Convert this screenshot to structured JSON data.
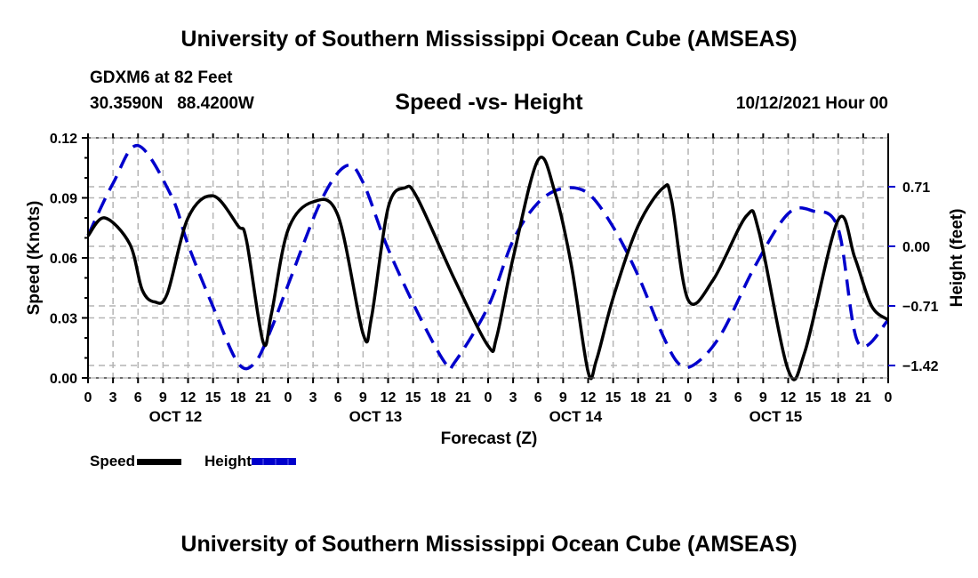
{
  "header": {
    "main_title": "University of Southern Mississippi Ocean Cube (AMSEAS)",
    "station": "GDXM6 at 82 Feet",
    "coords": "30.3590N   88.4200W",
    "chart_title": "Speed -vs- Height",
    "date": "10/12/2021 Hour 00"
  },
  "footer": {
    "bottom_title": "University of Southern Mississippi Ocean Cube (AMSEAS)"
  },
  "colors": {
    "speed": "#000000",
    "height": "#0000cc",
    "grid": "#b4b4b4"
  },
  "chart_data": {
    "type": "line",
    "title": "Speed -vs- Height",
    "xlabel": "Forecast (Z)",
    "ylabel": "Speed (Knots)",
    "y2label": "Height (feet)",
    "x_unit": "hours from 10/12/2021 00Z",
    "xlim": [
      0,
      96
    ],
    "ylim": [
      0.0,
      0.12
    ],
    "y2lim": [
      -1.58,
      2.02
    ],
    "x_tick_labels": [
      "0",
      "3",
      "6",
      "9",
      "12",
      "15",
      "18",
      "21",
      "0",
      "3",
      "6",
      "9",
      "12",
      "15",
      "18",
      "21",
      "0",
      "3",
      "6",
      "9",
      "12",
      "15",
      "18",
      "21",
      "0",
      "3",
      "6",
      "9",
      "12",
      "15",
      "18",
      "21",
      "0"
    ],
    "day_labels": [
      "OCT 12",
      "OCT 13",
      "OCT 14",
      "OCT 15"
    ],
    "y_ticks": [
      "0.00",
      "0.03",
      "0.06",
      "0.09",
      "0.12"
    ],
    "y2_ticks": [
      "-1.42",
      "-0.71",
      "0.00",
      "0.71"
    ],
    "grid": true,
    "legend": {
      "position": "bottom-left",
      "entries": [
        {
          "name": "Speed",
          "style": "solid"
        },
        {
          "name": "Height",
          "style": "dashed"
        }
      ]
    },
    "series": [
      {
        "name": "Speed",
        "axis": "left",
        "x": [
          0,
          2,
          5,
          6.5,
          8,
          9.5,
          12,
          15,
          18,
          19,
          21,
          22,
          24,
          27,
          30,
          33,
          34,
          36,
          38,
          39.5,
          44,
          48,
          49,
          51,
          54,
          56,
          58,
          60,
          61,
          63,
          66,
          69,
          70,
          72,
          75,
          79,
          80.5,
          84,
          86,
          90,
          92,
          94,
          96
        ],
        "values": [
          0.071,
          0.08,
          0.067,
          0.044,
          0.038,
          0.042,
          0.08,
          0.091,
          0.076,
          0.069,
          0.018,
          0.032,
          0.074,
          0.088,
          0.081,
          0.022,
          0.03,
          0.085,
          0.095,
          0.09,
          0.049,
          0.016,
          0.02,
          0.06,
          0.109,
          0.093,
          0.056,
          0.003,
          0.009,
          0.04,
          0.076,
          0.095,
          0.089,
          0.039,
          0.049,
          0.081,
          0.073,
          0.004,
          0.013,
          0.079,
          0.06,
          0.036,
          0.029
        ]
      },
      {
        "name": "Height",
        "axis": "right",
        "x": [
          0,
          3,
          6,
          10,
          12,
          15,
          18,
          20,
          22,
          24,
          28,
          31,
          33,
          36,
          40,
          43,
          44,
          48,
          51,
          54,
          57,
          60,
          63,
          66,
          69,
          71,
          73,
          76,
          80,
          84,
          87,
          90,
          92.4,
          96
        ],
        "values": [
          0.13,
          0.75,
          1.2,
          0.6,
          0.02,
          -0.72,
          -1.39,
          -1.39,
          -0.98,
          -0.46,
          0.55,
          0.96,
          0.76,
          -0.03,
          -0.88,
          -1.41,
          -1.38,
          -0.72,
          0.07,
          0.52,
          0.69,
          0.63,
          0.23,
          -0.35,
          -1.07,
          -1.41,
          -1.39,
          -1.04,
          -0.24,
          0.39,
          0.42,
          0.21,
          -1.15,
          -0.88
        ]
      }
    ]
  }
}
